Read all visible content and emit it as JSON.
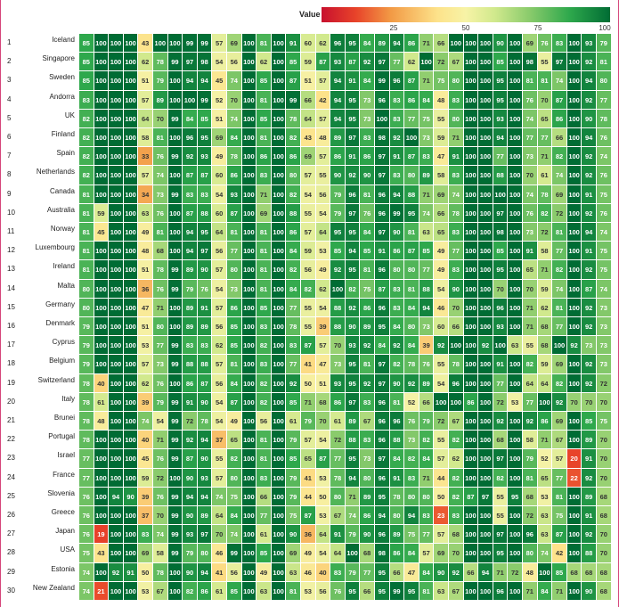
{
  "chart_data": {
    "type": "heatmap",
    "legend": {
      "title": "Value",
      "ticks": [
        25,
        50,
        75,
        100
      ]
    },
    "rows": [
      {
        "rank": "1",
        "country": "Iceland",
        "values": [
          85,
          100,
          100,
          100,
          43,
          100,
          100,
          99,
          99,
          57,
          69,
          100,
          81,
          100,
          91,
          60,
          62,
          96,
          95,
          84,
          89,
          94,
          86,
          71,
          66,
          100,
          100,
          100,
          90,
          100,
          69,
          76,
          83,
          100,
          93,
          79
        ]
      },
      {
        "rank": "2",
        "country": "Singapore",
        "values": [
          85,
          100,
          100,
          100,
          62,
          78,
          99,
          97,
          98,
          54,
          56,
          100,
          62,
          100,
          85,
          59,
          87,
          93,
          87,
          92,
          97,
          77,
          62,
          100,
          72,
          67,
          100,
          100,
          85,
          100,
          98,
          55,
          97,
          100,
          92,
          81
        ]
      },
      {
        "rank": "3",
        "country": "Sweden",
        "values": [
          85,
          100,
          100,
          100,
          51,
          79,
          100,
          94,
          94,
          45,
          74,
          100,
          85,
          100,
          87,
          51,
          57,
          94,
          91,
          84,
          99,
          96,
          87,
          71,
          75,
          80,
          100,
          100,
          95,
          100,
          81,
          81,
          74,
          100,
          94,
          80
        ]
      },
      {
        "rank": "4",
        "country": "Andorra",
        "values": [
          83,
          100,
          100,
          100,
          57,
          89,
          100,
          100,
          99,
          52,
          70,
          100,
          81,
          100,
          99,
          66,
          42,
          94,
          95,
          73,
          96,
          83,
          86,
          84,
          48,
          83,
          100,
          100,
          95,
          100,
          76,
          70,
          87,
          100,
          92,
          77
        ]
      },
      {
        "rank": "5",
        "country": "UK",
        "values": [
          82,
          100,
          100,
          100,
          64,
          70,
          99,
          84,
          85,
          51,
          74,
          100,
          85,
          100,
          78,
          64,
          57,
          94,
          95,
          73,
          100,
          83,
          77,
          75,
          55,
          80,
          100,
          100,
          93,
          100,
          74,
          65,
          86,
          100,
          90,
          78
        ]
      },
      {
        "rank": "6",
        "country": "Finland",
        "values": [
          82,
          100,
          100,
          100,
          58,
          81,
          100,
          96,
          95,
          69,
          84,
          100,
          81,
          100,
          82,
          43,
          48,
          89,
          97,
          83,
          98,
          92,
          100,
          73,
          59,
          71,
          100,
          100,
          94,
          100,
          77,
          77,
          66,
          100,
          94,
          76
        ]
      },
      {
        "rank": "7",
        "country": "Spain",
        "values": [
          82,
          100,
          100,
          100,
          33,
          76,
          99,
          92,
          93,
          49,
          78,
          100,
          86,
          100,
          86,
          69,
          57,
          86,
          91,
          86,
          97,
          91,
          87,
          83,
          47,
          91,
          100,
          100,
          77,
          100,
          73,
          71,
          82,
          100,
          92,
          74
        ]
      },
      {
        "rank": "8",
        "country": "Netherlands",
        "values": [
          82,
          100,
          100,
          100,
          57,
          74,
          100,
          87,
          87,
          60,
          86,
          100,
          83,
          100,
          80,
          57,
          55,
          90,
          92,
          90,
          97,
          83,
          80,
          89,
          58,
          83,
          100,
          100,
          88,
          100,
          70,
          61,
          74,
          100,
          92,
          76
        ]
      },
      {
        "rank": "9",
        "country": "Canada",
        "values": [
          81,
          100,
          100,
          100,
          34,
          73,
          99,
          83,
          83,
          54,
          93,
          100,
          71,
          100,
          82,
          54,
          56,
          79,
          96,
          81,
          96,
          94,
          88,
          71,
          69,
          74,
          100,
          100,
          100,
          100,
          74,
          78,
          69,
          100,
          91,
          75
        ]
      },
      {
        "rank": "10",
        "country": "Australia",
        "values": [
          81,
          59,
          100,
          100,
          63,
          76,
          100,
          87,
          88,
          60,
          87,
          100,
          69,
          100,
          88,
          55,
          54,
          79,
          97,
          76,
          96,
          99,
          95,
          74,
          66,
          78,
          100,
          100,
          97,
          100,
          76,
          82,
          72,
          100,
          92,
          76
        ]
      },
      {
        "rank": "11",
        "country": "Norway",
        "values": [
          81,
          45,
          100,
          100,
          49,
          81,
          100,
          94,
          95,
          64,
          81,
          100,
          81,
          100,
          86,
          57,
          64,
          95,
          95,
          84,
          97,
          90,
          81,
          63,
          65,
          83,
          100,
          100,
          98,
          100,
          73,
          72,
          81,
          100,
          94,
          74
        ]
      },
      {
        "rank": "12",
        "country": "Luxembourg",
        "values": [
          81,
          100,
          100,
          100,
          48,
          68,
          100,
          94,
          97,
          56,
          77,
          100,
          81,
          100,
          84,
          59,
          53,
          85,
          94,
          85,
          91,
          86,
          87,
          85,
          49,
          77,
          100,
          100,
          85,
          100,
          91,
          58,
          77,
          100,
          91,
          75
        ]
      },
      {
        "rank": "13",
        "country": "Ireland",
        "values": [
          81,
          100,
          100,
          100,
          51,
          78,
          99,
          89,
          90,
          57,
          80,
          100,
          81,
          100,
          82,
          56,
          49,
          92,
          95,
          81,
          96,
          80,
          80,
          77,
          49,
          83,
          100,
          100,
          95,
          100,
          65,
          71,
          82,
          100,
          92,
          75
        ]
      },
      {
        "rank": "14",
        "country": "Malta",
        "values": [
          80,
          100,
          100,
          100,
          36,
          76,
          99,
          79,
          76,
          54,
          73,
          100,
          81,
          100,
          84,
          82,
          62,
          100,
          82,
          75,
          87,
          83,
          81,
          88,
          54,
          90,
          100,
          100,
          70,
          100,
          70,
          59,
          74,
          100,
          87,
          74
        ]
      },
      {
        "rank": "15",
        "country": "Germany",
        "values": [
          80,
          100,
          100,
          100,
          47,
          71,
          100,
          89,
          91,
          57,
          86,
          100,
          85,
          100,
          77,
          55,
          54,
          88,
          92,
          86,
          96,
          83,
          84,
          94,
          46,
          70,
          100,
          100,
          96,
          100,
          71,
          62,
          81,
          100,
          92,
          73
        ]
      },
      {
        "rank": "16",
        "country": "Denmark",
        "values": [
          79,
          100,
          100,
          100,
          51,
          80,
          100,
          89,
          89,
          56,
          85,
          100,
          83,
          100,
          78,
          55,
          39,
          88,
          90,
          89,
          95,
          84,
          80,
          73,
          60,
          66,
          100,
          100,
          93,
          100,
          71,
          68,
          77,
          100,
          92,
          73
        ]
      },
      {
        "rank": "17",
        "country": "Cyprus",
        "values": [
          79,
          100,
          100,
          100,
          53,
          77,
          99,
          83,
          83,
          62,
          85,
          100,
          82,
          100,
          83,
          87,
          57,
          70,
          93,
          92,
          84,
          92,
          84,
          39,
          92,
          100,
          100,
          92,
          100,
          63,
          55,
          68,
          100,
          92,
          73,
          73
        ]
      },
      {
        "rank": "18",
        "country": "Belgium",
        "values": [
          79,
          100,
          100,
          100,
          57,
          73,
          99,
          88,
          88,
          57,
          81,
          100,
          83,
          100,
          77,
          41,
          47,
          73,
          95,
          81,
          97,
          82,
          78,
          76,
          55,
          78,
          100,
          100,
          91,
          100,
          82,
          59,
          69,
          100,
          92,
          73
        ]
      },
      {
        "rank": "19",
        "country": "Switzerland",
        "values": [
          78,
          40,
          100,
          100,
          62,
          76,
          100,
          86,
          87,
          56,
          84,
          100,
          82,
          100,
          92,
          50,
          51,
          93,
          95,
          92,
          97,
          90,
          92,
          89,
          54,
          96,
          100,
          100,
          77,
          100,
          64,
          64,
          82,
          100,
          92,
          72
        ]
      },
      {
        "rank": "20",
        "country": "Italy",
        "values": [
          78,
          61,
          100,
          100,
          39,
          79,
          99,
          91,
          90,
          54,
          87,
          100,
          82,
          100,
          85,
          71,
          68,
          86,
          97,
          83,
          96,
          81,
          52,
          66,
          100,
          100,
          86,
          100,
          72,
          53,
          77,
          100,
          92,
          70,
          70,
          70
        ]
      },
      {
        "rank": "21",
        "country": "Brunei",
        "values": [
          78,
          48,
          100,
          100,
          74,
          54,
          99,
          72,
          78,
          54,
          49,
          100,
          56,
          100,
          61,
          79,
          70,
          61,
          89,
          67,
          96,
          96,
          76,
          79,
          72,
          67,
          100,
          100,
          92,
          100,
          92,
          86,
          69,
          100,
          85,
          75
        ]
      },
      {
        "rank": "22",
        "country": "Portugal",
        "values": [
          78,
          100,
          100,
          100,
          40,
          71,
          99,
          92,
          94,
          37,
          65,
          100,
          81,
          100,
          79,
          57,
          54,
          72,
          88,
          83,
          96,
          88,
          73,
          82,
          55,
          82,
          100,
          100,
          68,
          100,
          58,
          71,
          67,
          100,
          89,
          70
        ]
      },
      {
        "rank": "23",
        "country": "Israel",
        "values": [
          77,
          100,
          100,
          100,
          45,
          76,
          99,
          87,
          90,
          55,
          82,
          100,
          81,
          100,
          85,
          65,
          87,
          77,
          95,
          73,
          97,
          84,
          82,
          84,
          57,
          62,
          100,
          100,
          97,
          100,
          79,
          52,
          57,
          20,
          91,
          70
        ]
      },
      {
        "rank": "24",
        "country": "France",
        "values": [
          77,
          100,
          100,
          100,
          59,
          72,
          100,
          90,
          93,
          57,
          80,
          100,
          83,
          100,
          79,
          41,
          53,
          78,
          94,
          80,
          96,
          91,
          83,
          71,
          44,
          82,
          100,
          100,
          82,
          100,
          81,
          65,
          77,
          22,
          92,
          70
        ]
      },
      {
        "rank": "25",
        "country": "Slovenia",
        "values": [
          76,
          100,
          94,
          90,
          39,
          76,
          99,
          94,
          94,
          74,
          75,
          100,
          66,
          100,
          79,
          44,
          50,
          80,
          71,
          89,
          95,
          78,
          80,
          80,
          50,
          82,
          87,
          97,
          55,
          95,
          68,
          53,
          81,
          100,
          89,
          68
        ]
      },
      {
        "rank": "26",
        "country": "Greece",
        "values": [
          76,
          100,
          100,
          100,
          37,
          70,
          99,
          90,
          89,
          64,
          84,
          100,
          77,
          100,
          75,
          87,
          53,
          67,
          74,
          86,
          94,
          80,
          94,
          83,
          23,
          83,
          100,
          100,
          55,
          100,
          72,
          63,
          75,
          100,
          91,
          68
        ]
      },
      {
        "rank": "27",
        "country": "Japan",
        "values": [
          76,
          19,
          100,
          100,
          83,
          74,
          99,
          93,
          97,
          70,
          74,
          100,
          61,
          100,
          90,
          36,
          64,
          91,
          79,
          90,
          96,
          89,
          75,
          77,
          57,
          68,
          100,
          100,
          97,
          100,
          96,
          63,
          87,
          100,
          92,
          70
        ]
      },
      {
        "rank": "28",
        "country": "USA",
        "values": [
          75,
          43,
          100,
          100,
          69,
          58,
          99,
          79,
          80,
          46,
          99,
          100,
          85,
          100,
          69,
          49,
          54,
          64,
          100,
          68,
          98,
          86,
          84,
          57,
          69,
          70,
          100,
          100,
          95,
          100,
          80,
          74,
          42,
          100,
          88,
          70
        ]
      },
      {
        "rank": "29",
        "country": "Estonia",
        "values": [
          74,
          100,
          92,
          91,
          50,
          78,
          100,
          90,
          94,
          41,
          56,
          100,
          49,
          100,
          63,
          46,
          40,
          83,
          79,
          77,
          95,
          66,
          47,
          84,
          90,
          92,
          66,
          94,
          71,
          72,
          48,
          100,
          85,
          68,
          68,
          68
        ]
      },
      {
        "rank": "30",
        "country": "New Zealand",
        "values": [
          74,
          21,
          100,
          100,
          53,
          67,
          100,
          82,
          86,
          61,
          85,
          100,
          63,
          100,
          81,
          53,
          56,
          76,
          95,
          66,
          95,
          99,
          95,
          81,
          63,
          67,
          100,
          100,
          96,
          100,
          71,
          84,
          71,
          100,
          90,
          68
        ]
      }
    ]
  }
}
